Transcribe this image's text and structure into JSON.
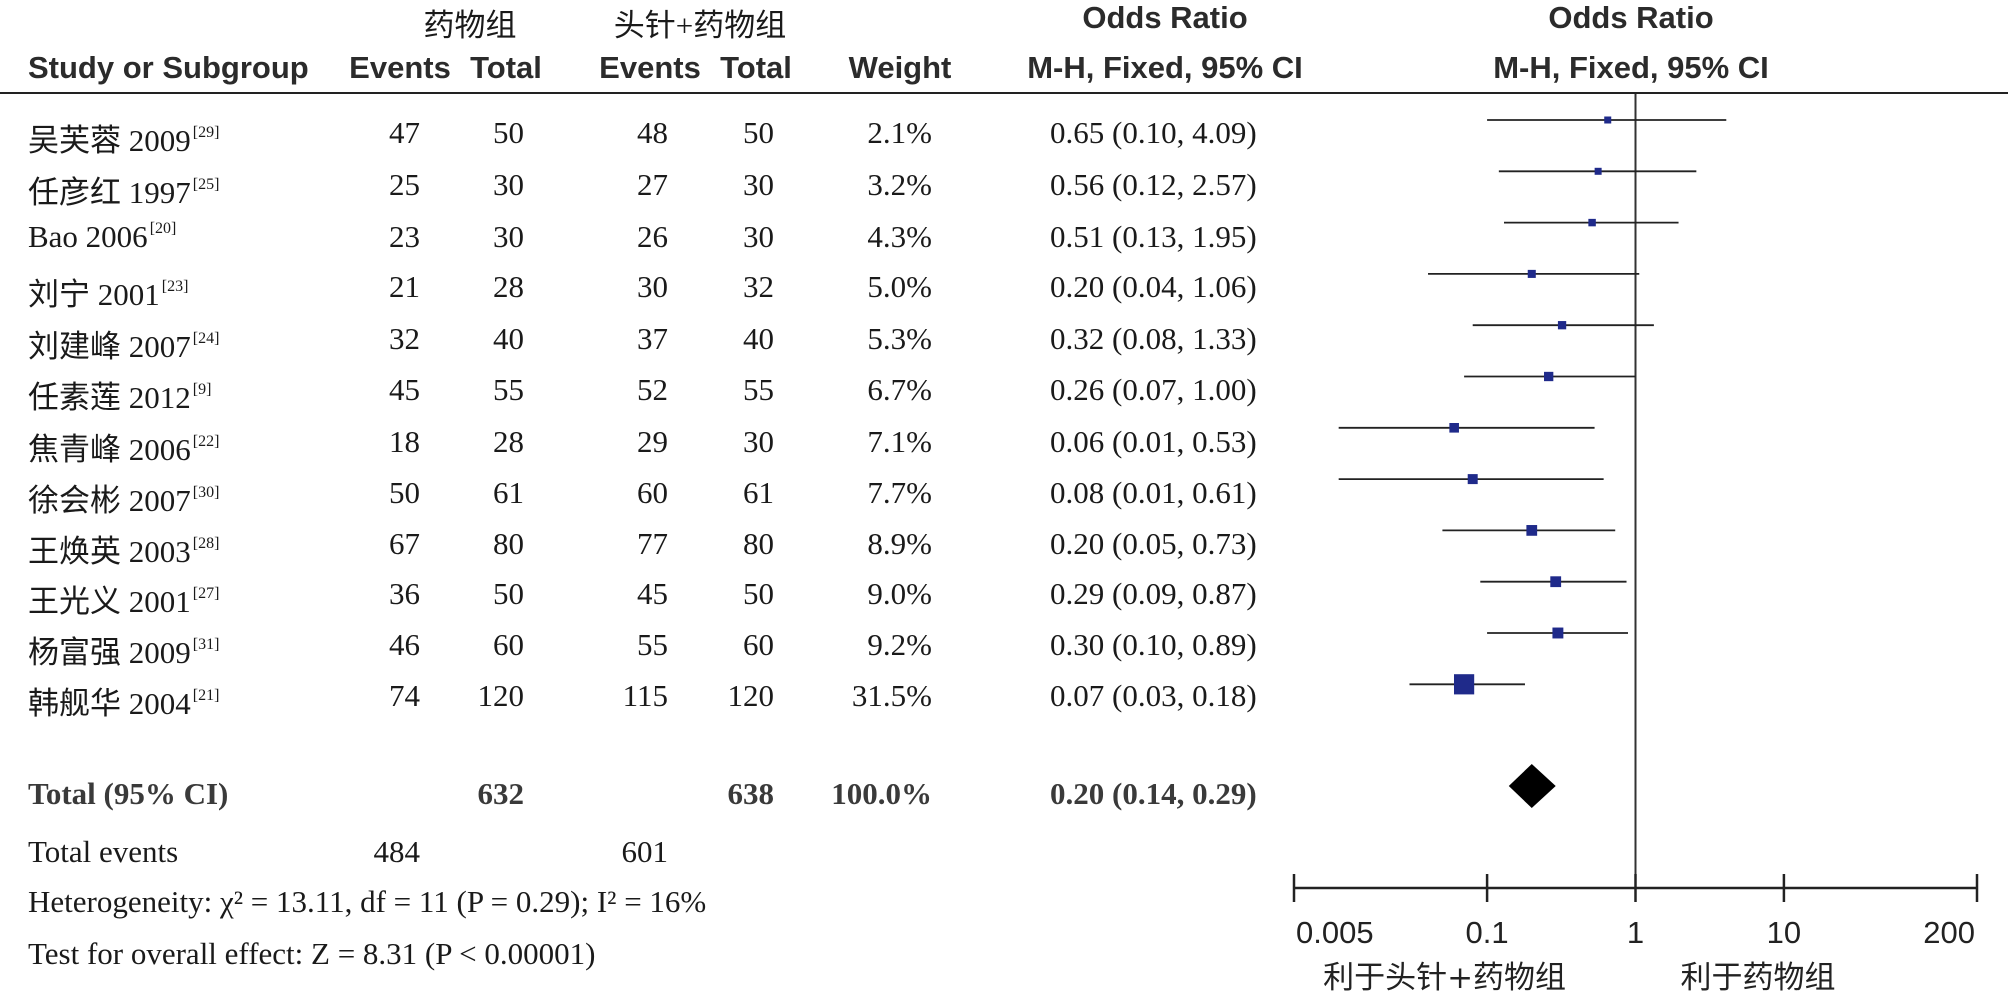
{
  "headers": {
    "group1": "药物组",
    "group2": "头针+药物组",
    "study": "Study or Subgroup",
    "events1": "Events",
    "total1": "Total",
    "events2": "Events",
    "total2": "Total",
    "weight": "Weight",
    "or_title": "Odds Ratio",
    "or_method": "M-H, Fixed, 95% CI",
    "plot_title": "Odds Ratio",
    "plot_method": "M-H, Fixed, 95% CI"
  },
  "studies": [
    {
      "name": "吴芙蓉 2009",
      "ref": "[29]",
      "e1": "47",
      "t1": "50",
      "e2": "48",
      "t2": "50",
      "weight": "2.1%",
      "ci": "0.65 (0.10, 4.09)"
    },
    {
      "name": "任彦红 1997",
      "ref": "[25]",
      "e1": "25",
      "t1": "30",
      "e2": "27",
      "t2": "30",
      "weight": "3.2%",
      "ci": "0.56 (0.12, 2.57)"
    },
    {
      "name": "Bao 2006",
      "ref": "[20]",
      "e1": "23",
      "t1": "30",
      "e2": "26",
      "t2": "30",
      "weight": "4.3%",
      "ci": "0.51 (0.13, 1.95)"
    },
    {
      "name": "刘宁 2001",
      "ref": "[23]",
      "e1": "21",
      "t1": "28",
      "e2": "30",
      "t2": "32",
      "weight": "5.0%",
      "ci": "0.20 (0.04, 1.06)"
    },
    {
      "name": "刘建峰 2007",
      "ref": "[24]",
      "e1": "32",
      "t1": "40",
      "e2": "37",
      "t2": "40",
      "weight": "5.3%",
      "ci": "0.32 (0.08, 1.33)"
    },
    {
      "name": "任素莲 2012",
      "ref": "[9]",
      "e1": "45",
      "t1": "55",
      "e2": "52",
      "t2": "55",
      "weight": "6.7%",
      "ci": "0.26 (0.07, 1.00)"
    },
    {
      "name": "焦青峰 2006",
      "ref": "[22]",
      "e1": "18",
      "t1": "28",
      "e2": "29",
      "t2": "30",
      "weight": "7.1%",
      "ci": "0.06 (0.01, 0.53)"
    },
    {
      "name": "徐会彬 2007",
      "ref": "[30]",
      "e1": "50",
      "t1": "61",
      "e2": "60",
      "t2": "61",
      "weight": "7.7%",
      "ci": "0.08 (0.01, 0.61)"
    },
    {
      "name": "王焕英 2003",
      "ref": "[28]",
      "e1": "67",
      "t1": "80",
      "e2": "77",
      "t2": "80",
      "weight": "8.9%",
      "ci": "0.20 (0.05, 0.73)"
    },
    {
      "name": "王光义 2001",
      "ref": "[27]",
      "e1": "36",
      "t1": "50",
      "e2": "45",
      "t2": "50",
      "weight": "9.0%",
      "ci": "0.29 (0.09, 0.87)"
    },
    {
      "name": "杨富强 2009",
      "ref": "[31]",
      "e1": "46",
      "t1": "60",
      "e2": "55",
      "t2": "60",
      "weight": "9.2%",
      "ci": "0.30 (0.10, 0.89)"
    },
    {
      "name": "韩舰华 2004",
      "ref": "[21]",
      "e1": "74",
      "t1": "120",
      "e2": "115",
      "t2": "120",
      "weight": "31.5%",
      "ci": "0.07 (0.03, 0.18)"
    }
  ],
  "total": {
    "label": "Total (95% CI)",
    "t1": "632",
    "t2": "638",
    "weight": "100.0%",
    "ci": "0.20 (0.14, 0.29)"
  },
  "total_events": {
    "label": "Total events",
    "e1": "484",
    "e2": "601"
  },
  "heterogeneity": "Heterogeneity: χ² = 13.11, df = 11 (P = 0.29); I² = 16%",
  "overall_effect": "Test for overall effect: Z = 8.31 (P < 0.00001)",
  "chart_data": {
    "type": "forest",
    "scale": "log",
    "xlim": [
      0.005,
      200
    ],
    "ticks": [
      0.005,
      0.1,
      1,
      10,
      200
    ],
    "tick_labels": [
      "0.005",
      "0.1",
      "1",
      "10",
      "200"
    ],
    "reference_line": 1,
    "favours_left": "利于头针+药物组",
    "favours_right": "利于药物组",
    "points": [
      {
        "or": 0.65,
        "lo": 0.1,
        "hi": 4.09,
        "weight": 2.1
      },
      {
        "or": 0.56,
        "lo": 0.12,
        "hi": 2.57,
        "weight": 3.2
      },
      {
        "or": 0.51,
        "lo": 0.13,
        "hi": 1.95,
        "weight": 4.3
      },
      {
        "or": 0.2,
        "lo": 0.04,
        "hi": 1.06,
        "weight": 5.0
      },
      {
        "or": 0.32,
        "lo": 0.08,
        "hi": 1.33,
        "weight": 5.3
      },
      {
        "or": 0.26,
        "lo": 0.07,
        "hi": 1.0,
        "weight": 6.7
      },
      {
        "or": 0.06,
        "lo": 0.01,
        "hi": 0.53,
        "weight": 7.1
      },
      {
        "or": 0.08,
        "lo": 0.01,
        "hi": 0.61,
        "weight": 7.7
      },
      {
        "or": 0.2,
        "lo": 0.05,
        "hi": 0.73,
        "weight": 8.9
      },
      {
        "or": 0.29,
        "lo": 0.09,
        "hi": 0.87,
        "weight": 9.0
      },
      {
        "or": 0.3,
        "lo": 0.1,
        "hi": 0.89,
        "weight": 9.2
      },
      {
        "or": 0.07,
        "lo": 0.03,
        "hi": 0.18,
        "weight": 31.5
      }
    ],
    "pooled": {
      "or": 0.2,
      "lo": 0.14,
      "hi": 0.29
    },
    "colors": {
      "marker": "#1f2a8a",
      "line": "#222222",
      "diamond": "#000000"
    }
  }
}
